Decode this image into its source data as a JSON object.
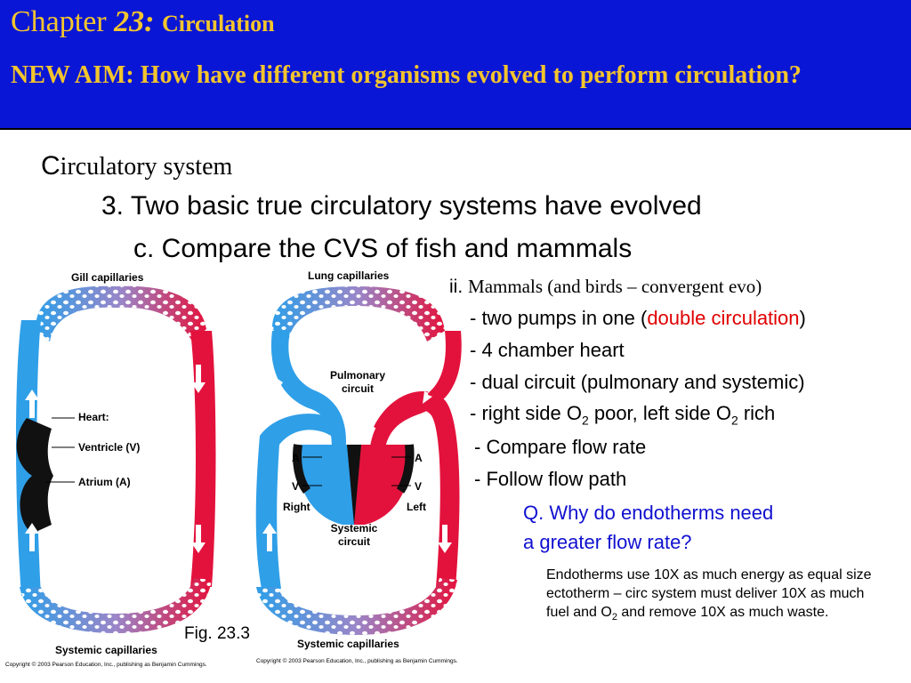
{
  "header": {
    "chapter_word": "Chapter",
    "chapter_number": "23:",
    "chapter_topic": "Circulation",
    "aim": "NEW AIM: How have different organisms evolved to perform circulation?"
  },
  "outline": {
    "heading_first": "C",
    "heading_rest": "irculatory system",
    "point3": "3. Two basic true circulatory systems have evolved",
    "point3c": "c. Compare the CVS of fish and mammals",
    "sub_ii_prefix": "ii.",
    "sub_ii_text": "Mammals (and birds – convergent evo)",
    "bullets": {
      "b1_pre": "- two pumps in one (",
      "b1_red": "double circulation",
      "b1_post": ")",
      "b2": "- 4 chamber heart",
      "b3": "- dual circuit (pulmonary and systemic)",
      "b4_a": "- right side O",
      "b4_sub1": "2",
      "b4_b": " poor, left side O",
      "b4_sub2": "2",
      "b4_c": " rich",
      "b5": "- Compare flow rate",
      "b6": "- Follow flow path"
    },
    "question_line1": "Q. Why do endotherms need",
    "question_line2": "a greater flow rate?",
    "answer": {
      "a1": "Endotherms use 10X as much energy as equal size ectotherm – circ system must deliver 10X as much fuel and O",
      "a_sub": "2",
      "a2": " and remove 10X as much waste."
    }
  },
  "figure": {
    "fig_label": "Fig. 23.3",
    "fish": {
      "gill_capillaries": "Gill capillaries",
      "heart": "Heart:",
      "ventricle": "Ventricle (V)",
      "atrium": "Atrium (A)",
      "systemic_capillaries": "Systemic capillaries"
    },
    "mammal": {
      "lung_capillaries": "Lung capillaries",
      "pulmonary_1": "Pulmonary",
      "pulmonary_2": "circuit",
      "a_left": "A",
      "a_right": "A",
      "v_left": "V",
      "v_right": "V",
      "right": "Right",
      "left": "Left",
      "systemic_1": "Systemic",
      "systemic_2": "circuit",
      "systemic_capillaries": "Systemic capillaries"
    },
    "copyright_left": "Copyright © 2003 Pearson Education, Inc., publishing as Benjamin Cummings.",
    "copyright_right": "Copyright © 2003 Pearson Education, Inc., publishing as Benjamin Cummings."
  },
  "colors": {
    "header_bg": "#0a16d6",
    "title_gold": "#f3c52d",
    "oxygen_poor": "#2f9fe8",
    "oxygen_rich": "#e3123c",
    "question_blue": "#1010d0",
    "highlight_red": "#e00000"
  }
}
